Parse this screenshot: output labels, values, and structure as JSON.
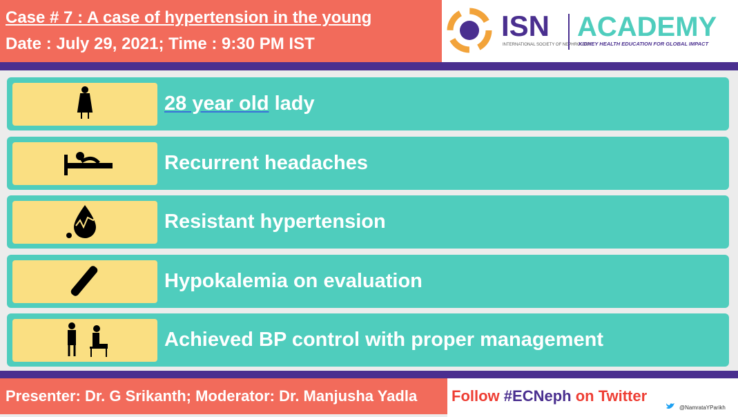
{
  "header": {
    "title": "Case # 7 : A case of  hypertension in the young",
    "date": "Date : July 29, 2021; Time : 9:30 PM IST"
  },
  "logo": {
    "isn": "ISN",
    "isn_sub": "INTERNATIONAL SOCIETY OF NEPHROLOGY",
    "academy": "ACADEMY",
    "tagline": "KIDNEY HEALTH EDUCATION FOR GLOBAL IMPACT"
  },
  "items": [
    {
      "underlined": "28 year old",
      "text": " lady"
    },
    {
      "text": "Recurrent headaches"
    },
    {
      "text": "Resistant hypertension"
    },
    {
      "text": "Hypokalemia on evaluation"
    },
    {
      "text": "Achieved BP control with proper management"
    }
  ],
  "footer": {
    "presenter": "Presenter: Dr. G Srikanth; Moderator: Dr. Manjusha Yadla",
    "follow": "Follow",
    "hashtag": "#ECNeph",
    "platform": "on Twitter",
    "handle": "@NamrataYParikh"
  }
}
